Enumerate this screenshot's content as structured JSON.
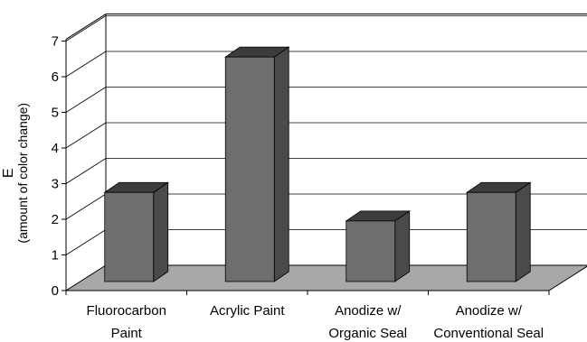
{
  "chart_data": {
    "type": "bar",
    "categories": [
      [
        "Fluorocarbon",
        "Paint"
      ],
      [
        "Acrylic Paint"
      ],
      [
        "Anodize w/",
        "Organic Seal"
      ],
      [
        "Anodize w/",
        "Conventional Seal"
      ]
    ],
    "values": [
      2.5,
      6.3,
      1.7,
      2.5
    ],
    "title": "",
    "xlabel": "",
    "ylabel": [
      "E",
      "(amount of color change)"
    ],
    "ylim": [
      0,
      7
    ],
    "yticks": [
      0,
      1,
      2,
      3,
      4,
      5,
      6,
      7
    ],
    "grid": true,
    "style": "3d",
    "colors": {
      "bar_front": "#6e6e6e",
      "bar_top": "#3c3c3c",
      "bar_side": "#4a4a4a",
      "floor": "#a8a8a8",
      "axis": "#000000",
      "grid": "#000000"
    }
  }
}
